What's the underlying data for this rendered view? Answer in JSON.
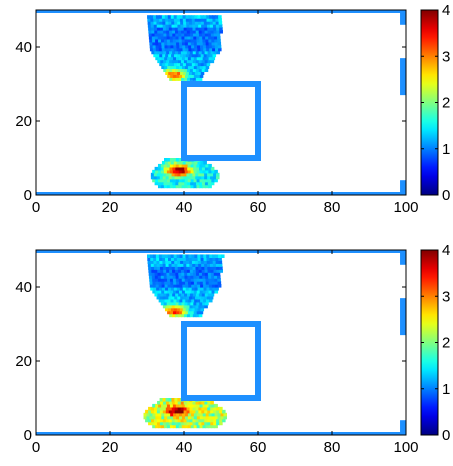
{
  "chart_data": [
    {
      "type": "heatmap",
      "title": "",
      "xlabel": "",
      "ylabel": "",
      "xlim": [
        0,
        100
      ],
      "ylim": [
        0,
        50
      ],
      "xticks": [
        "0",
        "20",
        "40",
        "60",
        "80",
        "100"
      ],
      "yticks": [
        "0",
        "20",
        "40"
      ],
      "colorbar": {
        "range": [
          0,
          4
        ],
        "ticks": [
          "0",
          "1",
          "2",
          "3",
          "4"
        ],
        "colormap": "jet"
      },
      "geometry": {
        "color": "#1e90ff",
        "channel_walls_y": [
          0,
          50
        ],
        "channel_x_range": [
          0,
          100
        ],
        "obstacle_square": {
          "x": [
            40,
            60
          ],
          "y": [
            10,
            30
          ]
        },
        "outlet_segments_x": 100,
        "outlet_segments_y": [
          [
            0,
            4
          ],
          [
            27,
            37
          ],
          [
            46,
            50
          ]
        ]
      },
      "plumes": [
        {
          "region": "upper",
          "x_range": [
            30,
            50
          ],
          "y_range": [
            31,
            48
          ],
          "peak_value": 3.2,
          "typical_value": 1.2
        },
        {
          "region": "lower",
          "x_range": [
            31,
            49
          ],
          "y_range": [
            2,
            10
          ],
          "peak_value": 4,
          "typical_value": 1.5
        }
      ]
    },
    {
      "type": "heatmap",
      "title": "",
      "xlabel": "",
      "ylabel": "",
      "xlim": [
        0,
        100
      ],
      "ylim": [
        0,
        50
      ],
      "xticks": [
        "0",
        "20",
        "40",
        "60",
        "80",
        "100"
      ],
      "yticks": [
        "0",
        "20",
        "40"
      ],
      "colorbar": {
        "range": [
          0,
          4
        ],
        "ticks": [
          "0",
          "1",
          "2",
          "3",
          "4"
        ],
        "colormap": "jet"
      },
      "geometry": {
        "color": "#1e90ff",
        "channel_walls_y": [
          0,
          50
        ],
        "channel_x_range": [
          0,
          100
        ],
        "obstacle_square": {
          "x": [
            40,
            60
          ],
          "y": [
            10,
            30
          ]
        },
        "outlet_segments_x": 100,
        "outlet_segments_y": [
          [
            0,
            4
          ],
          [
            27,
            37
          ],
          [
            46,
            50
          ]
        ]
      },
      "plumes": [
        {
          "region": "upper",
          "x_range": [
            30,
            50
          ],
          "y_range": [
            32,
            48
          ],
          "peak_value": 3.4,
          "typical_value": 1.2
        },
        {
          "region": "lower",
          "x_range": [
            29,
            51
          ],
          "y_range": [
            2,
            10
          ],
          "peak_value": 4,
          "typical_value": 2.2
        }
      ]
    }
  ]
}
